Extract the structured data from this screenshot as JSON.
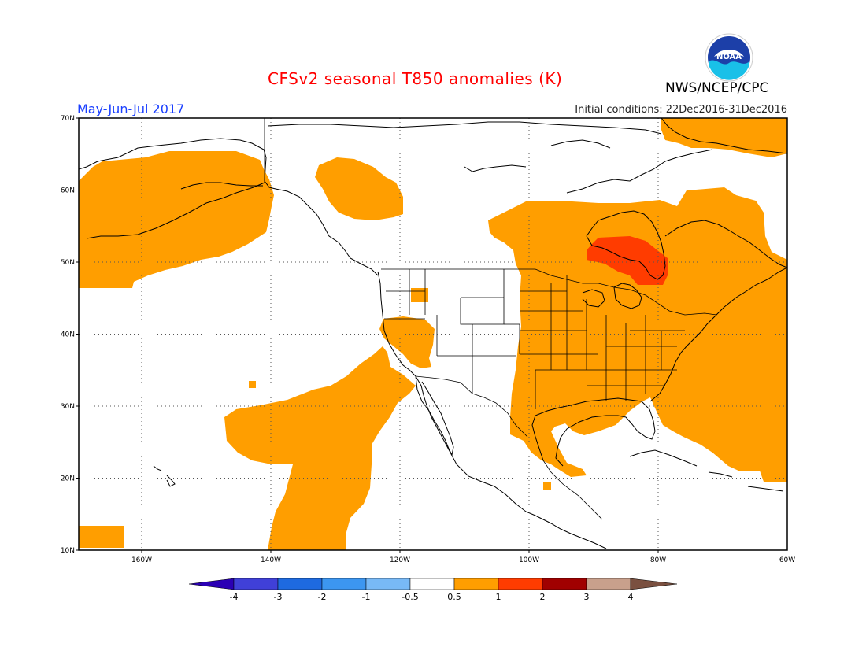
{
  "header": {
    "title": "CFSv2 seasonal T850 anomalies (K)",
    "period": "May-Jun-Jul 2017",
    "initial_conditions": "Initial conditions: 22Dec2016-31Dec2016",
    "agency": "NWS/NCEP/CPC",
    "logo_text": "NOAA"
  },
  "map": {
    "lon_range": [
      -172,
      -60
    ],
    "lat_range": [
      10,
      70
    ],
    "lat_ticks": [
      "70N",
      "60N",
      "50N",
      "40N",
      "30N",
      "20N",
      "10N"
    ],
    "lon_ticks": [
      "160W",
      "140W",
      "120W",
      "100W",
      "80W",
      "60W"
    ],
    "grid": "dotted"
  },
  "colorbar": {
    "labels": [
      "-4",
      "-3",
      "-2",
      "-1",
      "-0.5",
      "0.5",
      "1",
      "2",
      "3",
      "4"
    ],
    "colors": [
      "#2b00b4",
      "#4040d8",
      "#1e6ae0",
      "#3c96f0",
      "#78b9f6",
      "#ffffff",
      "#ff9e00",
      "#ff3c00",
      "#a00000",
      "#c8a08c",
      "#7a5040"
    ]
  },
  "anomaly_regions": [
    {
      "level": "0.5 to 1",
      "color": "#ff9e00",
      "area": "Alaska and North Pacific"
    },
    {
      "level": "0.5 to 1",
      "color": "#ff9e00",
      "area": "Gulf of Alaska"
    },
    {
      "level": "0.5 to 1",
      "color": "#ff9e00",
      "area": "Eastern Canada and Eastern United States"
    },
    {
      "level": "0.5 to 1",
      "color": "#ff9e00",
      "area": "Greenland"
    },
    {
      "level": "0.5 to 1",
      "color": "#ff9e00",
      "area": "Eastern North Pacific"
    },
    {
      "level": "0.5 to 1",
      "color": "#ff9e00",
      "area": "Great Basin"
    },
    {
      "level": "1 to 2",
      "color": "#ff3c00",
      "area": "Hudson Bay / Ontario"
    }
  ]
}
